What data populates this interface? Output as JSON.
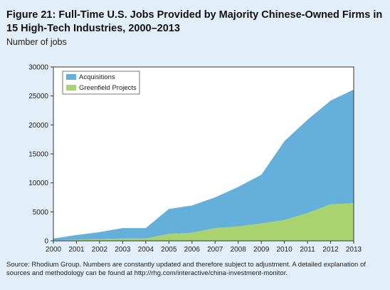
{
  "figure": {
    "title": "Figure 21: Full-Time U.S. Jobs Provided by Majority Chinese-Owned Firms in 15 High-Tech Industries, 2000–2013",
    "subtitle": "Number of jobs",
    "source": "Source: Rhodium Group. Numbers are constantly updated and therefore subject to adjustment. A detailed explanation of sources and methodology can be found at http://rhg.com/interactive/china-investment-monitor."
  },
  "chart_data": {
    "type": "area",
    "stacked": true,
    "x": [
      "2000",
      "2001",
      "2002",
      "2003",
      "2004",
      "2005",
      "2006",
      "2007",
      "2008",
      "2009",
      "2010",
      "2011",
      "2012",
      "2013"
    ],
    "series": [
      {
        "name": "Greenfield Projects",
        "color": "#a8d36f",
        "values": [
          100,
          200,
          300,
          400,
          400,
          1200,
          1400,
          2200,
          2500,
          3000,
          3600,
          4800,
          6300,
          6500
        ]
      },
      {
        "name": "Acquisitions",
        "color": "#64b0db",
        "values": [
          300,
          800,
          1200,
          1800,
          1800,
          4300,
          4700,
          5300,
          6800,
          8400,
          13600,
          16100,
          17900,
          19600
        ]
      }
    ],
    "legend_order": [
      "Acquisitions",
      "Greenfield Projects"
    ],
    "legend_position": "top-left",
    "ylim": [
      0,
      30000
    ],
    "yticks": [
      0,
      5000,
      10000,
      15000,
      20000,
      25000,
      30000
    ],
    "grid": false
  }
}
